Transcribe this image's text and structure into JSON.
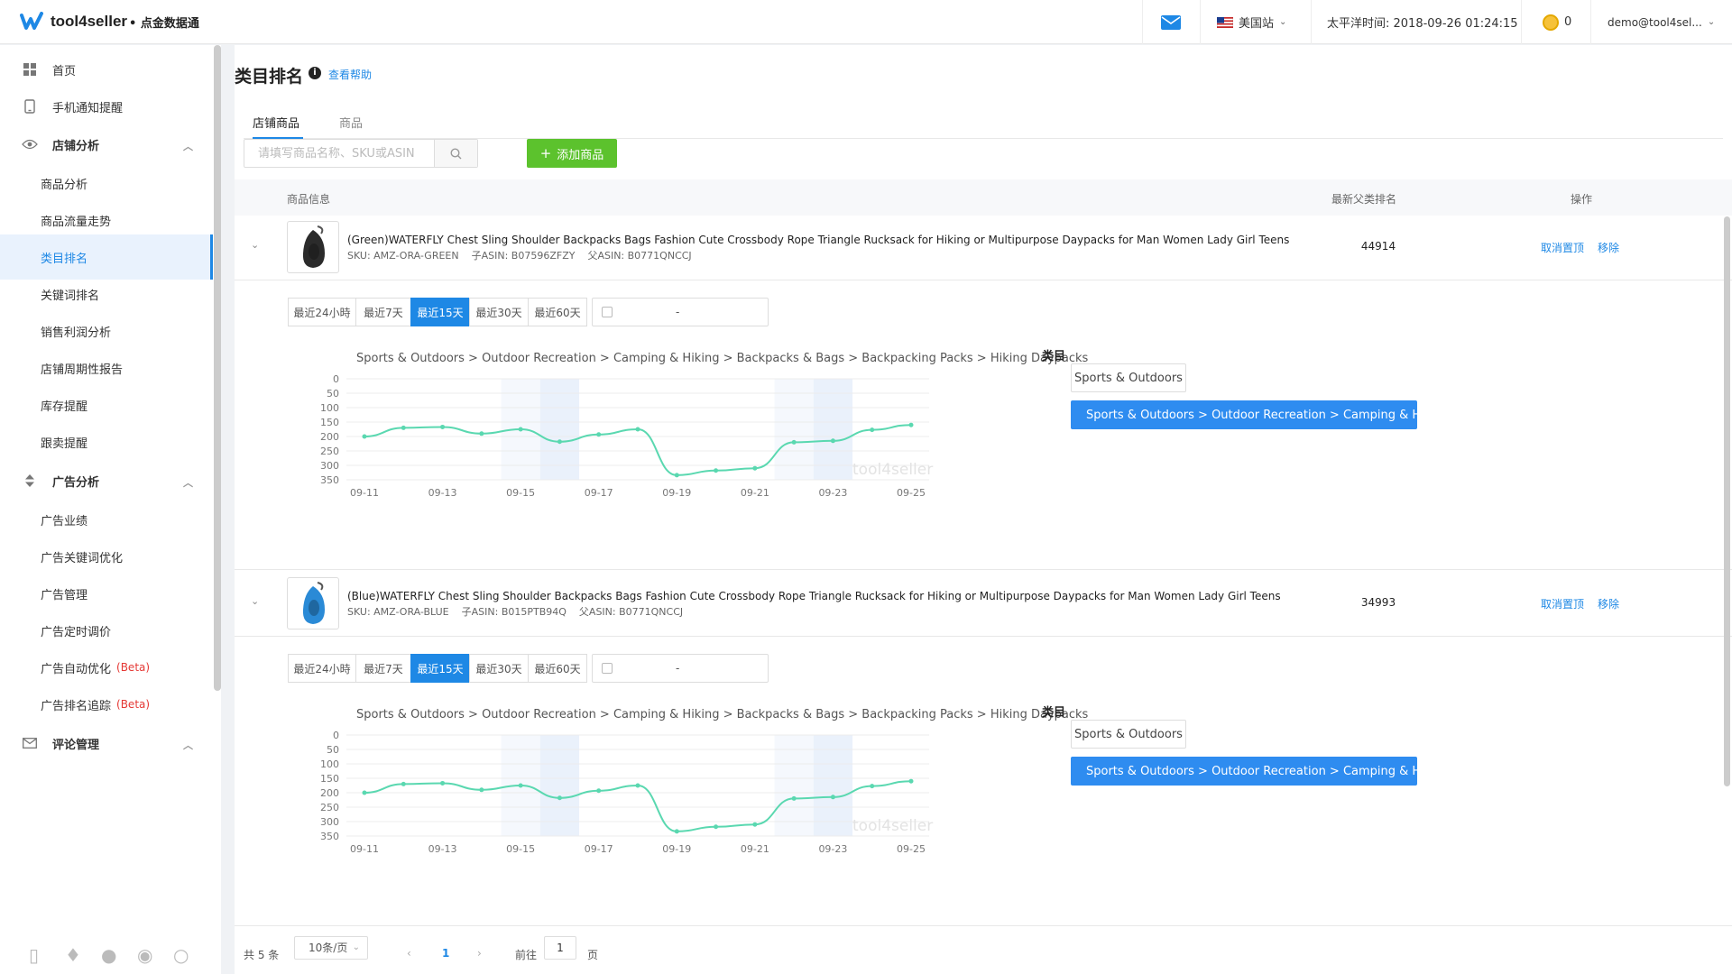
{
  "app": {
    "name": "tool4seller",
    "subtitle": "• 点金数据通",
    "brand_color": "#1e88e5"
  },
  "topbar": {
    "marketplace": "美国站",
    "time_label": "太平洋时间: 2018-09-26 01:24:15",
    "coins": "0",
    "user": "demo@tool4sel..."
  },
  "sidebar": {
    "items": [
      {
        "label": "首页",
        "icon": "grid-icon",
        "kind": "top"
      },
      {
        "label": "手机通知提醒",
        "icon": "phone-icon",
        "kind": "top"
      },
      {
        "label": "店铺分析",
        "icon": "eye-icon",
        "kind": "group"
      },
      {
        "label": "商品分析",
        "kind": "sub"
      },
      {
        "label": "商品流量走势",
        "kind": "sub"
      },
      {
        "label": "类目排名",
        "kind": "sub",
        "active": true
      },
      {
        "label": "关键词排名",
        "kind": "sub"
      },
      {
        "label": "销售利润分析",
        "kind": "sub"
      },
      {
        "label": "店铺周期性报告",
        "kind": "sub"
      },
      {
        "label": "库存提醒",
        "kind": "sub"
      },
      {
        "label": "跟卖提醒",
        "kind": "sub"
      },
      {
        "label": "广告分析",
        "icon": "sort-icon",
        "kind": "group"
      },
      {
        "label": "广告业绩",
        "kind": "sub"
      },
      {
        "label": "广告关键词优化",
        "kind": "sub"
      },
      {
        "label": "广告管理",
        "kind": "sub"
      },
      {
        "label": "广告定时调价",
        "kind": "sub"
      },
      {
        "label": "广告自动优化",
        "kind": "sub",
        "beta": "(Beta)"
      },
      {
        "label": "广告排名追踪",
        "kind": "sub",
        "beta": "(Beta)"
      },
      {
        "label": "评论管理",
        "icon": "mail-icon",
        "kind": "group"
      }
    ]
  },
  "page": {
    "title": "类目排名",
    "help_link": "查看帮助",
    "tabs": [
      "店铺商品",
      "商品"
    ],
    "search_placeholder": "请填写商品名称、SKU或ASIN",
    "add_button": "添加商品",
    "columns": {
      "info": "商品信息",
      "rank": "最新父类排名",
      "action": "操作"
    }
  },
  "products": [
    {
      "name": "(Green)WATERFLY Chest Sling Shoulder Backpacks Bags Fashion Cute Crossbody Rope Triangle Rucksack for Hiking or Multipurpose Daypacks for Man Women Lady Girl Teens",
      "sku": "SKU: AMZ-ORA-GREEN",
      "child_asin": "子ASIN: B07596ZFZY",
      "parent_asin": "父ASIN: B0771QNCCJ",
      "rank": "44914",
      "bag_color": "#2b2b2b",
      "actions": [
        "取消置顶",
        "移除"
      ]
    },
    {
      "name": "(Blue)WATERFLY Chest Sling Shoulder Backpacks Bags Fashion Cute Crossbody Rope Triangle Rucksack for Hiking or Multipurpose Daypacks for Man Women Lady Girl Teens",
      "sku": "SKU: AMZ-ORA-BLUE",
      "child_asin": "子ASIN: B015PTB94Q",
      "parent_asin": "父ASIN: B0771QNCCJ",
      "rank": "34993",
      "bag_color": "#2a8ad6",
      "actions": [
        "取消置顶",
        "移除"
      ]
    }
  ],
  "ranges": [
    "最近24小時",
    "最近7天",
    "最近15天",
    "最近30天",
    "最近60天"
  ],
  "active_range": 2,
  "date_dash": "-",
  "category": {
    "label": "类目",
    "top": "Sports & Outdoors",
    "full": "Sports & Outdoors > Outdoor Recreation > Camping & Hiking > Ba..."
  },
  "chart_data": [
    {
      "type": "line",
      "title": "Sports & Outdoors > Outdoor Recreation > Camping & Hiking > Backpacks & Bags > Backpacking Packs > Hiking Daypacks",
      "x": [
        "09-11",
        "09-12",
        "09-13",
        "09-14",
        "09-15",
        "09-16",
        "09-17",
        "09-18",
        "09-19",
        "09-20",
        "09-21",
        "09-22",
        "09-23",
        "09-24",
        "09-25"
      ],
      "x_tick_labels": [
        "09-11",
        "09-13",
        "09-15",
        "09-17",
        "09-19",
        "09-21",
        "09-23",
        "09-25"
      ],
      "y": [
        200,
        170,
        167,
        190,
        175,
        218,
        193,
        175,
        334,
        318,
        310,
        220,
        215,
        177,
        160
      ],
      "ylim": [
        0,
        350
      ],
      "y_reversed": true,
      "y_ticks": [
        0,
        50,
        100,
        150,
        200,
        250,
        300,
        350
      ],
      "line_color": "#5ad8b0",
      "weekend_shading": true,
      "watermark": "tool4seller"
    },
    {
      "type": "line",
      "title": "Sports & Outdoors > Outdoor Recreation > Camping & Hiking > Backpacks & Bags > Backpacking Packs > Hiking Daypacks",
      "x": [
        "09-11",
        "09-12",
        "09-13",
        "09-14",
        "09-15",
        "09-16",
        "09-17",
        "09-18",
        "09-19",
        "09-20",
        "09-21",
        "09-22",
        "09-23",
        "09-24",
        "09-25"
      ],
      "x_tick_labels": [
        "09-11",
        "09-13",
        "09-15",
        "09-17",
        "09-19",
        "09-21",
        "09-23",
        "09-25"
      ],
      "y": [
        200,
        170,
        167,
        190,
        175,
        218,
        193,
        175,
        334,
        318,
        310,
        220,
        215,
        177,
        160
      ],
      "ylim": [
        0,
        350
      ],
      "y_reversed": true,
      "y_ticks": [
        0,
        50,
        100,
        150,
        200,
        250,
        300,
        350
      ],
      "line_color": "#5ad8b0",
      "weekend_shading": true,
      "watermark": "tool4seller"
    }
  ],
  "pager": {
    "total": "共 5 条",
    "page_size": "10条/页",
    "current": "1",
    "goto_label": "前往",
    "goto_value": "1",
    "page_suffix": "页"
  }
}
